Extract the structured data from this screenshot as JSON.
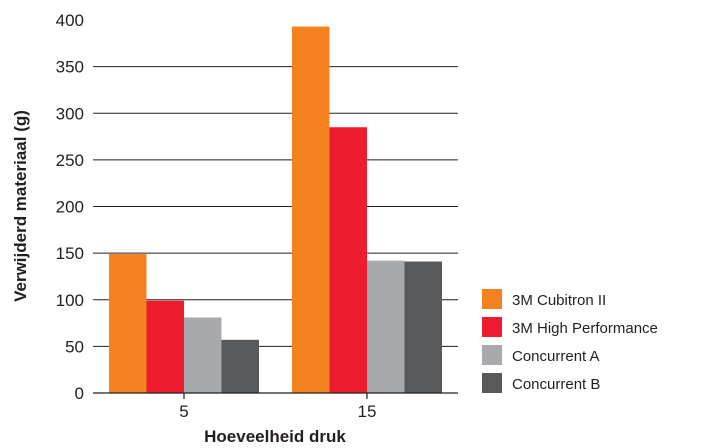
{
  "chart_data": {
    "type": "bar",
    "title": "",
    "xlabel": "Hoeveelheid druk",
    "ylabel": "Verwijderd materiaal (g)",
    "categories": [
      "5",
      "15"
    ],
    "ylim": [
      0,
      400
    ],
    "yticks": [
      0,
      50,
      100,
      150,
      200,
      250,
      300,
      350,
      400
    ],
    "grid": true,
    "legend_position": "right",
    "series": [
      {
        "name": "3M Cubitron II",
        "color": "#f58220",
        "values": [
          149,
          393
        ]
      },
      {
        "name": "3M High Performance",
        "color": "#ed1c2e",
        "values": [
          99,
          285
        ]
      },
      {
        "name": "Concurrent A",
        "color": "#a7a9ac",
        "values": [
          81,
          142
        ]
      },
      {
        "name": "Concurrent B",
        "color": "#58595b",
        "values": [
          57,
          141
        ]
      }
    ]
  }
}
